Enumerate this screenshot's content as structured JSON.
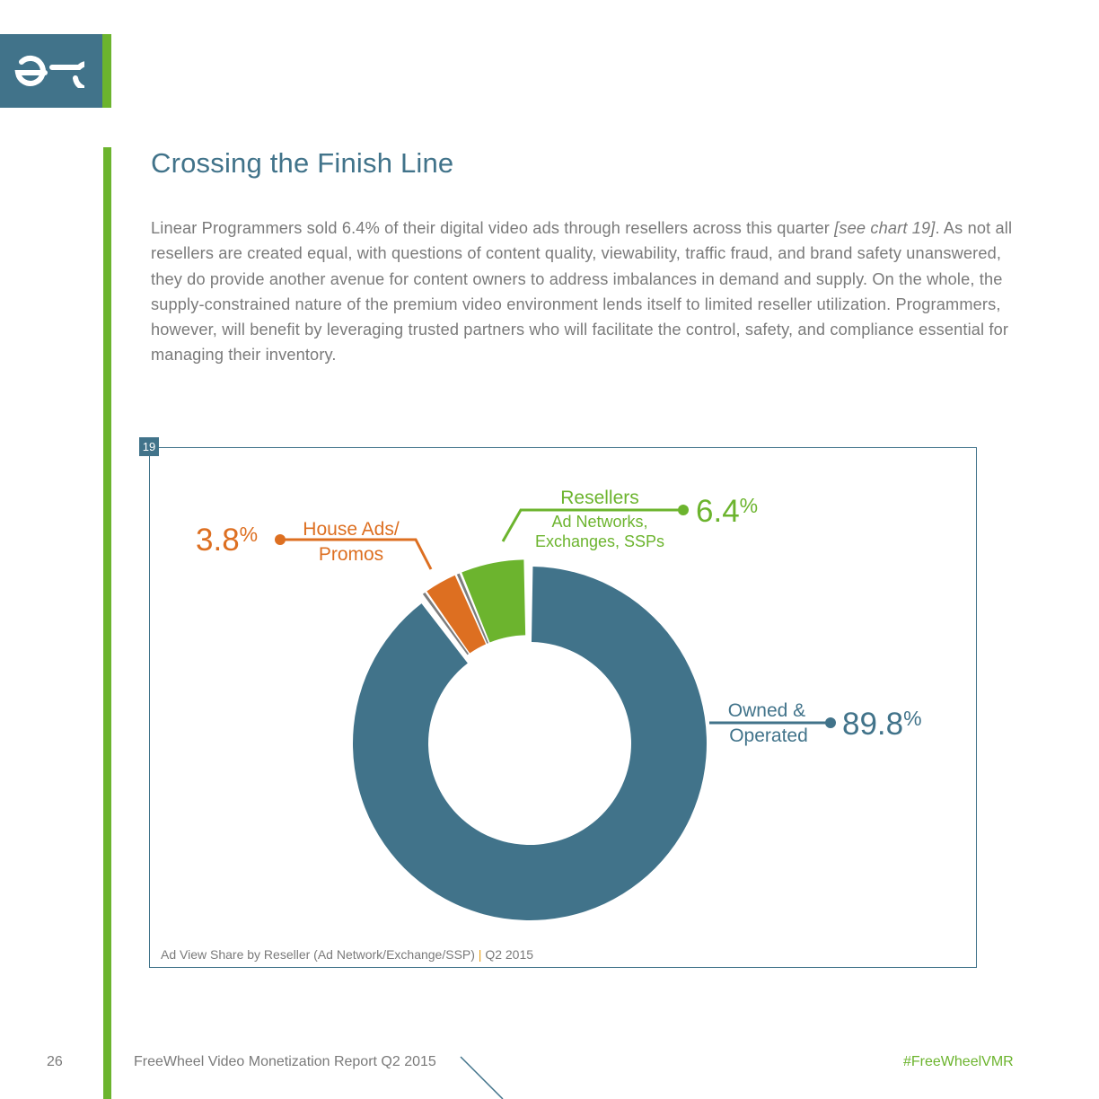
{
  "header": {
    "title": "Crossing the Finish Line",
    "paragraph_before": "Linear Programmers sold 6.4% of their digital video ads through resellers across this quarter ",
    "paragraph_ref": "[see chart 19]",
    "paragraph_after": ". As not all resellers are created equal, with questions of content quality, viewability, traffic fraud, and brand safety unanswered, they do provide another avenue for content owners to address imbalances in demand and supply. On the whole, the supply-constrained nature of the premium video environment lends itself to limited reseller utilization. Programmers, however, will benefit by leveraging trusted partners who will facilitate the control, safety, and compliance essential for managing their inventory."
  },
  "chart_number": "19",
  "chart_caption": {
    "main": "Ad View Share by Reseller (Ad Network/Exchange/SSP)",
    "separator": "|",
    "period": "Q2 2015"
  },
  "chart_data": {
    "type": "pie",
    "variant": "donut",
    "title": "Ad View Share by Reseller (Ad Network/Exchange/SSP)",
    "period": "Q2 2015",
    "unit": "%",
    "slices": [
      {
        "key": "resellers",
        "label": "Resellers",
        "sublabel_1": "Ad Networks,",
        "sublabel_2": "Exchanges, SSPs",
        "value": 6.4,
        "value_text": "6.4",
        "color": "#6cb42e"
      },
      {
        "key": "house",
        "label": "House Ads/",
        "sublabel_1": "Promos",
        "value": 3.8,
        "value_text": "3.8",
        "color": "#dd6f21"
      },
      {
        "key": "owned",
        "label": "Owned &",
        "sublabel_1": "Operated",
        "value": 89.8,
        "value_text": "89.8",
        "color": "#41738a"
      }
    ]
  },
  "footer": {
    "page_number": "26",
    "report_title": "FreeWheel Video Monetization Report Q2 2015",
    "hashtag": "#FreeWheelVMR"
  },
  "colors": {
    "brand_blue": "#41738a",
    "brand_green": "#6cb42e",
    "brand_orange": "#dd6f21",
    "text_gray": "#7a7a7a"
  }
}
